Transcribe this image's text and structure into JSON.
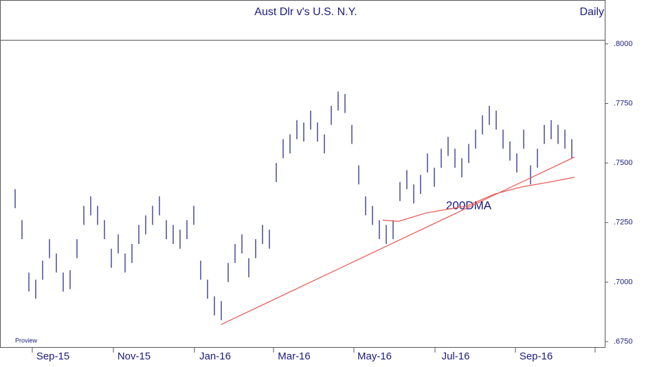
{
  "chart_data": {
    "type": "range_bar",
    "title": "Aust Dlr v's U.S. N.Y.",
    "subtitle": "Daily",
    "watermark": "Proview",
    "annotation": "200DMA",
    "color": "#3a3a90",
    "line_color": "#e8605a",
    "xlim": [
      -2.2,
      85.8
    ],
    "ylim": [
      0.6727,
      0.8017
    ],
    "yticks": [
      {
        "value": 0.8,
        "label": ".8000"
      },
      {
        "value": 0.775,
        "label": ".7750"
      },
      {
        "value": 0.75,
        "label": ".7500"
      },
      {
        "value": 0.725,
        "label": ".7250"
      },
      {
        "value": 0.7,
        "label": ".7000"
      },
      {
        "value": 0.675,
        "label": ".6750"
      }
    ],
    "xticks": [
      {
        "value": 2.5,
        "label": "Sep-15"
      },
      {
        "value": 14.3,
        "label": "Nov-15"
      },
      {
        "value": 26.1,
        "label": "Jan-16"
      },
      {
        "value": 37.6,
        "label": "Mar-16"
      },
      {
        "value": 49.3,
        "label": "May-16"
      },
      {
        "value": 61.1,
        "label": "Jul-16"
      },
      {
        "value": 72.8,
        "label": "Sep-16"
      },
      {
        "value": 84.4,
        "label": null
      }
    ],
    "highs": [
      0.739,
      0.726,
      0.704,
      0.701,
      0.709,
      0.718,
      0.712,
      0.704,
      0.705,
      0.718,
      0.732,
      0.736,
      0.732,
      0.726,
      0.714,
      0.72,
      0.712,
      0.716,
      0.724,
      0.728,
      0.732,
      0.736,
      0.726,
      0.724,
      0.722,
      0.726,
      0.732,
      0.709,
      0.701,
      0.694,
      0.692,
      0.708,
      0.716,
      0.72,
      0.71,
      0.718,
      0.724,
      0.722,
      0.75,
      0.76,
      0.762,
      0.768,
      0.767,
      0.772,
      0.767,
      0.762,
      0.774,
      0.78,
      0.779,
      0.766,
      0.749,
      0.736,
      0.732,
      0.726,
      0.724,
      0.726,
      0.742,
      0.747,
      0.741,
      0.745,
      0.754,
      0.748,
      0.756,
      0.761,
      0.756,
      0.752,
      0.758,
      0.764,
      0.77,
      0.774,
      0.772,
      0.764,
      0.759,
      0.754,
      0.764,
      0.749,
      0.756,
      0.766,
      0.768,
      0.766,
      0.764,
      0.76
    ],
    "lows": [
      0.731,
      0.718,
      0.696,
      0.693,
      0.701,
      0.71,
      0.704,
      0.696,
      0.697,
      0.71,
      0.724,
      0.728,
      0.724,
      0.718,
      0.706,
      0.712,
      0.704,
      0.708,
      0.716,
      0.72,
      0.724,
      0.728,
      0.718,
      0.716,
      0.714,
      0.718,
      0.724,
      0.701,
      0.693,
      0.686,
      0.684,
      0.7,
      0.708,
      0.712,
      0.702,
      0.71,
      0.716,
      0.714,
      0.742,
      0.752,
      0.754,
      0.76,
      0.759,
      0.764,
      0.759,
      0.754,
      0.766,
      0.772,
      0.771,
      0.758,
      0.741,
      0.728,
      0.724,
      0.718,
      0.716,
      0.718,
      0.734,
      0.739,
      0.733,
      0.737,
      0.746,
      0.74,
      0.748,
      0.753,
      0.748,
      0.744,
      0.75,
      0.756,
      0.762,
      0.766,
      0.764,
      0.756,
      0.751,
      0.746,
      0.756,
      0.741,
      0.748,
      0.758,
      0.76,
      0.758,
      0.756,
      0.752
    ],
    "lines": [
      {
        "x": [
          30,
          81.4
        ],
        "values": [
          0.6822,
          0.7525
        ]
      },
      {
        "x": [
          53.5,
          55.8,
          59.8,
          65.8,
          69.8,
          73.8,
          77.8,
          81.4
        ],
        "values": [
          0.726,
          0.7255,
          0.729,
          0.732,
          0.737,
          0.74,
          0.742,
          0.744
        ]
      }
    ]
  }
}
